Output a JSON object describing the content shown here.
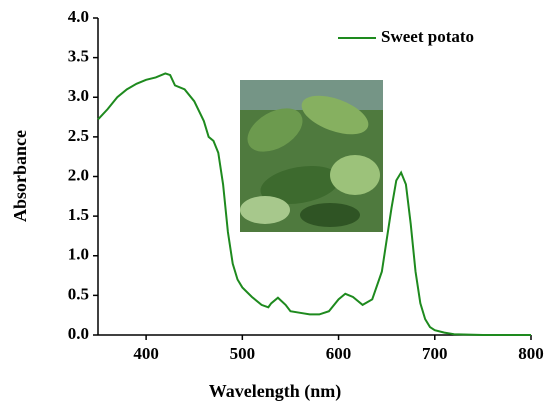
{
  "chart_data": {
    "type": "line",
    "x_label": "Wavelength (nm)",
    "y_label": "Absorbance",
    "x": [
      350,
      360,
      370,
      380,
      390,
      400,
      410,
      420,
      425,
      430,
      440,
      450,
      460,
      465,
      470,
      475,
      480,
      485,
      490,
      495,
      500,
      510,
      520,
      527,
      530,
      537,
      545,
      550,
      560,
      570,
      580,
      590,
      600,
      607,
      615,
      625,
      635,
      645,
      655,
      660,
      665,
      670,
      675,
      680,
      685,
      690,
      695,
      700,
      710,
      720,
      750,
      800
    ],
    "series": [
      {
        "name": "Sweet potato",
        "color": "#1e8a1e",
        "values": [
          2.72,
          2.85,
          3.0,
          3.1,
          3.17,
          3.22,
          3.25,
          3.3,
          3.28,
          3.15,
          3.1,
          2.95,
          2.7,
          2.5,
          2.45,
          2.3,
          1.9,
          1.3,
          0.9,
          0.7,
          0.6,
          0.48,
          0.38,
          0.35,
          0.4,
          0.47,
          0.38,
          0.3,
          0.28,
          0.26,
          0.26,
          0.3,
          0.45,
          0.52,
          0.48,
          0.38,
          0.45,
          0.8,
          1.6,
          1.95,
          2.05,
          1.9,
          1.4,
          0.8,
          0.4,
          0.2,
          0.1,
          0.06,
          0.03,
          0.01,
          0.0,
          0.0
        ]
      }
    ],
    "xlim": [
      350,
      800
    ],
    "xticks": [
      400,
      500,
      600,
      700,
      800
    ],
    "ylim": [
      0,
      4
    ],
    "yticks": [
      {
        "value": 0,
        "label": "0.0"
      },
      0.5,
      {
        "value": 1,
        "label": "1.0"
      },
      1.5,
      {
        "value": 2,
        "label": "2.0"
      },
      2.5,
      {
        "value": 3,
        "label": "3.0"
      },
      3.5,
      {
        "value": 4,
        "label": "4.0"
      }
    ],
    "legend": "top-right"
  }
}
